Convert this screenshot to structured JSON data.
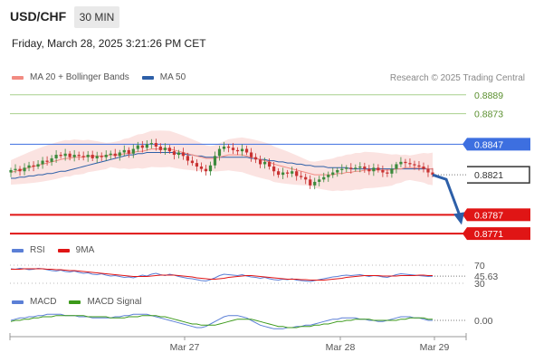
{
  "header": {
    "symbol": "USD/CHF",
    "timeframe": "30 MIN",
    "datetime": "Friday, March 28, 2025 3:21:26 PM CET"
  },
  "legends": {
    "main": [
      {
        "label": "MA 20 + Bollinger Bands",
        "color": "#f28b82"
      },
      {
        "label": "MA 50",
        "color": "#2d5fa8"
      }
    ],
    "rsi": [
      {
        "label": "RSI",
        "color": "#5b7fd6"
      },
      {
        "label": "9MA",
        "color": "#e01515"
      }
    ],
    "macd": [
      {
        "label": "MACD",
        "color": "#5b7fd6"
      },
      {
        "label": "MACD Signal",
        "color": "#3c9a1a"
      }
    ],
    "research": "Research © 2025 Trading Central"
  },
  "colors": {
    "resistance_green": "#a8d08d",
    "pivot_blue": "#3d6fe0",
    "support_red": "#e01515",
    "candle_up": "#3c8a3c",
    "candle_down": "#c83232"
  },
  "chart_data": [
    {
      "type": "candlestick",
      "title": "USD/CHF 30 MIN",
      "x_labels": [
        "Mar 27",
        "Mar 28",
        "Mar 29"
      ],
      "ylim": [
        0.8768,
        0.8895
      ],
      "levels": [
        {
          "label": "0.8889",
          "value": 0.8889,
          "kind": "resistance"
        },
        {
          "label": "0.8873",
          "value": 0.8873,
          "kind": "resistance"
        },
        {
          "label": "0.8847",
          "value": 0.8847,
          "kind": "pivot"
        },
        {
          "label": "0.8821",
          "value": 0.8821,
          "kind": "last"
        },
        {
          "label": "0.8787",
          "value": 0.8787,
          "kind": "support"
        },
        {
          "label": "0.8771",
          "value": 0.8771,
          "kind": "support"
        }
      ],
      "close": [
        0.8825,
        0.8826,
        0.8824,
        0.8827,
        0.8829,
        0.8828,
        0.883,
        0.8833,
        0.8832,
        0.8835,
        0.8838,
        0.8837,
        0.8839,
        0.8836,
        0.8838,
        0.8837,
        0.8836,
        0.8838,
        0.8835,
        0.8837,
        0.8836,
        0.8838,
        0.8839,
        0.8837,
        0.884,
        0.8842,
        0.8839,
        0.8843,
        0.8846,
        0.8844,
        0.8847,
        0.8848,
        0.8845,
        0.8842,
        0.8844,
        0.8841,
        0.8838,
        0.884,
        0.8837,
        0.8833,
        0.8831,
        0.8828,
        0.8826,
        0.8824,
        0.8829,
        0.8837,
        0.8843,
        0.8845,
        0.8844,
        0.8842,
        0.8841,
        0.8843,
        0.884,
        0.8836,
        0.8834,
        0.883,
        0.8832,
        0.8828,
        0.8824,
        0.8821,
        0.8823,
        0.8822,
        0.8824,
        0.882,
        0.8819,
        0.8817,
        0.8812,
        0.8815,
        0.8817,
        0.8819,
        0.8821,
        0.8823,
        0.8825,
        0.8826,
        0.8827,
        0.8826,
        0.8827,
        0.8828,
        0.8826,
        0.8824,
        0.8827,
        0.8825,
        0.8823,
        0.8822,
        0.8826,
        0.883,
        0.8832,
        0.8831,
        0.883,
        0.8829,
        0.8828,
        0.8826,
        0.8823,
        0.8821
      ],
      "ma20": [
        0.8823,
        0.8824,
        0.8825,
        0.8826,
        0.8827,
        0.8828,
        0.8829,
        0.883,
        0.8831,
        0.8832,
        0.8833,
        0.8834,
        0.8835,
        0.8835,
        0.8836,
        0.8836,
        0.8836,
        0.8837,
        0.8837,
        0.8837,
        0.8837,
        0.8837,
        0.8838,
        0.8838,
        0.8838,
        0.8839,
        0.8839,
        0.884,
        0.8841,
        0.8841,
        0.8842,
        0.8843,
        0.8843,
        0.8843,
        0.8843,
        0.8843,
        0.8842,
        0.8841,
        0.884,
        0.8839,
        0.8838,
        0.8837,
        0.8836,
        0.8835,
        0.8835,
        0.8835,
        0.8836,
        0.8837,
        0.8838,
        0.8838,
        0.8838,
        0.8838,
        0.8837,
        0.8836,
        0.8835,
        0.8834,
        0.8833,
        0.8832,
        0.883,
        0.8829,
        0.8828,
        0.8827,
        0.8826,
        0.8825,
        0.8824,
        0.8823,
        0.8822,
        0.8821,
        0.8821,
        0.8821,
        0.8821,
        0.8821,
        0.8822,
        0.8822,
        0.8823,
        0.8823,
        0.8824,
        0.8824,
        0.8825,
        0.8825,
        0.8825,
        0.8825,
        0.8825,
        0.8825,
        0.8825,
        0.8826,
        0.8826,
        0.8827,
        0.8827,
        0.8827,
        0.8827,
        0.8827,
        0.8826,
        0.8826
      ],
      "ma50": [
        0.8818,
        0.8818,
        0.8819,
        0.8819,
        0.882,
        0.882,
        0.8821,
        0.8821,
        0.8822,
        0.8822,
        0.8823,
        0.8824,
        0.8824,
        0.8825,
        0.8826,
        0.8827,
        0.8828,
        0.8829,
        0.883,
        0.8831,
        0.8832,
        0.8833,
        0.8834,
        0.8835,
        0.8836,
        0.8837,
        0.8838,
        0.8838,
        0.8839,
        0.8839,
        0.884,
        0.884,
        0.884,
        0.884,
        0.884,
        0.884,
        0.884,
        0.8839,
        0.8839,
        0.8838,
        0.8838,
        0.8837,
        0.8837,
        0.8836,
        0.8836,
        0.8836,
        0.8836,
        0.8836,
        0.8836,
        0.8836,
        0.8836,
        0.8836,
        0.8836,
        0.8835,
        0.8835,
        0.8834,
        0.8834,
        0.8833,
        0.8833,
        0.8832,
        0.8832,
        0.8831,
        0.8831,
        0.883,
        0.883,
        0.8829,
        0.8829,
        0.8828,
        0.8828,
        0.8828,
        0.8827,
        0.8827,
        0.8827,
        0.8827,
        0.8827,
        0.8826,
        0.8826,
        0.8826,
        0.8826,
        0.8826,
        0.8826,
        0.8826,
        0.8826,
        0.8826,
        0.8826,
        0.8826,
        0.8826,
        0.8826,
        0.8826,
        0.8826,
        0.8826,
        0.8826,
        0.8826,
        0.8826
      ],
      "bb_width": 0.0013,
      "forecast": {
        "from": 0.8821,
        "to": 0.878
      }
    },
    {
      "type": "line",
      "title": "RSI",
      "levels": [
        70,
        30
      ],
      "value_label": "45.63",
      "ylim": [
        20,
        80
      ],
      "series": [
        {
          "name": "RSI",
          "values": [
            62,
            61,
            63,
            62,
            60,
            61,
            63,
            62,
            60,
            58,
            57,
            59,
            56,
            55,
            57,
            54,
            52,
            53,
            50,
            49,
            51,
            48,
            46,
            47,
            45,
            43,
            44,
            42,
            45,
            48,
            46,
            50,
            52,
            49,
            47,
            50,
            48,
            45,
            43,
            41,
            40,
            38,
            36,
            35,
            38,
            42,
            47,
            50,
            49,
            48,
            47,
            49,
            46,
            44,
            43,
            41,
            43,
            40,
            38,
            37,
            39,
            38,
            40,
            37,
            36,
            35,
            34,
            36,
            38,
            40,
            42,
            44,
            45,
            47,
            48,
            47,
            48,
            49,
            47,
            45,
            47,
            46,
            44,
            43,
            46,
            49,
            51,
            50,
            49,
            48,
            47,
            46,
            45,
            45.63
          ]
        },
        {
          "name": "9MA",
          "values": [
            61,
            61,
            61,
            62,
            62,
            62,
            62,
            62,
            61,
            61,
            60,
            60,
            59,
            58,
            58,
            57,
            56,
            55,
            54,
            53,
            52,
            51,
            50,
            49,
            48,
            47,
            46,
            45,
            45,
            45,
            45,
            46,
            47,
            48,
            48,
            48,
            48,
            47,
            46,
            45,
            44,
            42,
            41,
            40,
            39,
            39,
            40,
            41,
            43,
            44,
            45,
            46,
            47,
            47,
            46,
            45,
            44,
            43,
            42,
            41,
            40,
            39,
            39,
            39,
            38,
            38,
            37,
            37,
            37,
            37,
            38,
            39,
            40,
            41,
            43,
            44,
            45,
            46,
            47,
            47,
            47,
            47,
            46,
            46,
            46,
            46,
            47,
            47,
            47,
            47,
            48,
            48,
            47,
            47
          ]
        }
      ]
    },
    {
      "type": "line",
      "title": "MACD",
      "value_label": "0.00",
      "ylim": [
        -0.0009,
        0.0009
      ],
      "series": [
        {
          "name": "MACD",
          "values": [
            0.0,
            0.0001,
            0.0002,
            0.0002,
            0.0003,
            0.0003,
            0.0004,
            0.0004,
            0.0005,
            0.0005,
            0.0005,
            0.0005,
            0.0004,
            0.0004,
            0.0004,
            0.0003,
            0.0003,
            0.0003,
            0.0002,
            0.0002,
            0.0002,
            0.0002,
            0.0002,
            0.0003,
            0.0003,
            0.0004,
            0.0004,
            0.0005,
            0.0005,
            0.0005,
            0.0005,
            0.0004,
            0.0003,
            0.0002,
            0.0001,
            0.0,
            -0.0001,
            -0.0002,
            -0.0003,
            -0.0004,
            -0.0005,
            -0.0006,
            -0.0006,
            -0.0005,
            -0.0003,
            -0.0001,
            0.0001,
            0.0003,
            0.0004,
            0.0004,
            0.0004,
            0.0003,
            0.0002,
            0.0,
            -0.0002,
            -0.0004,
            -0.0005,
            -0.0006,
            -0.0007,
            -0.0007,
            -0.0007,
            -0.0006,
            -0.0006,
            -0.0005,
            -0.0005,
            -0.0004,
            -0.0004,
            -0.0003,
            -0.0002,
            -0.0001,
            0.0,
            0.0001,
            0.0001,
            0.0002,
            0.0002,
            0.0002,
            0.0002,
            0.0001,
            0.0001,
            0.0,
            0.0,
            -0.0001,
            -0.0001,
            0.0,
            0.0001,
            0.0002,
            0.0003,
            0.0003,
            0.0003,
            0.0002,
            0.0002,
            0.0001,
            0.0,
            0.0
          ]
        },
        {
          "name": "MACD Signal",
          "values": [
            -0.0001,
            0.0,
            0.0,
            0.0001,
            0.0001,
            0.0002,
            0.0002,
            0.0003,
            0.0003,
            0.0003,
            0.0004,
            0.0004,
            0.0004,
            0.0004,
            0.0004,
            0.0004,
            0.0004,
            0.0003,
            0.0003,
            0.0003,
            0.0003,
            0.0003,
            0.0002,
            0.0002,
            0.0002,
            0.0002,
            0.0003,
            0.0003,
            0.0003,
            0.0004,
            0.0004,
            0.0004,
            0.0004,
            0.0003,
            0.0003,
            0.0002,
            0.0001,
            0.0,
            -0.0001,
            -0.0002,
            -0.0003,
            -0.0003,
            -0.0004,
            -0.0004,
            -0.0004,
            -0.0004,
            -0.0003,
            -0.0002,
            -0.0001,
            0.0,
            0.0001,
            0.0001,
            0.0001,
            0.0001,
            0.0,
            -0.0001,
            -0.0002,
            -0.0003,
            -0.0004,
            -0.0005,
            -0.0005,
            -0.0006,
            -0.0006,
            -0.0006,
            -0.0005,
            -0.0005,
            -0.0005,
            -0.0004,
            -0.0004,
            -0.0003,
            -0.0003,
            -0.0002,
            -0.0001,
            -0.0001,
            0.0,
            0.0,
            0.0001,
            0.0001,
            0.0001,
            0.0001,
            0.0,
            0.0,
            0.0,
            0.0,
            0.0,
            0.0,
            0.0001,
            0.0001,
            0.0002,
            0.0002,
            0.0002,
            0.0002,
            0.0001,
            0.0001
          ]
        }
      ]
    }
  ]
}
